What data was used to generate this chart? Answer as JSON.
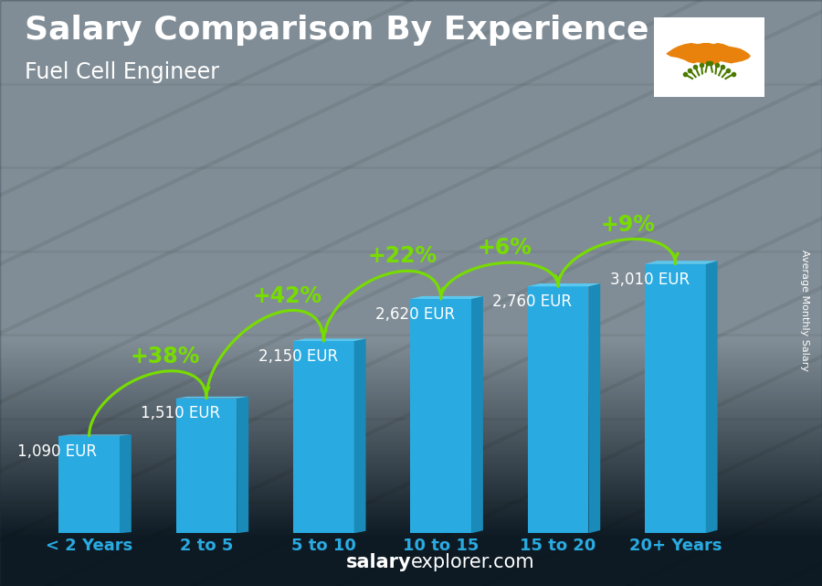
{
  "title": "Salary Comparison By Experience",
  "subtitle": "Fuel Cell Engineer",
  "categories": [
    "< 2 Years",
    "2 to 5",
    "5 to 10",
    "10 to 15",
    "15 to 20",
    "20+ Years"
  ],
  "values": [
    1090,
    1510,
    2150,
    2620,
    2760,
    3010
  ],
  "bar_color": "#29ABE2",
  "bar_color_top": "#5BC8F0",
  "bar_color_dark": "#1A8AB8",
  "pct_changes": [
    "+38%",
    "+42%",
    "+22%",
    "+6%",
    "+9%"
  ],
  "value_labels": [
    "1,090 EUR",
    "1,510 EUR",
    "2,150 EUR",
    "2,620 EUR",
    "2,760 EUR",
    "3,010 EUR"
  ],
  "title_color": "#FFFFFF",
  "subtitle_color": "#FFFFFF",
  "pct_color": "#77DD00",
  "value_label_color": "#FFFFFF",
  "xlabel_color": "#29ABE2",
  "bg_top": "#5A6A72",
  "bg_bottom": "#1A2830",
  "footer_fontsize": 15,
  "sidebar_text": "Average Monthly Salary",
  "ylim": [
    0,
    3800
  ],
  "title_fontsize": 26,
  "subtitle_fontsize": 17,
  "pct_fontsize": 17,
  "value_label_fontsize": 12,
  "xlabel_fontsize": 13
}
